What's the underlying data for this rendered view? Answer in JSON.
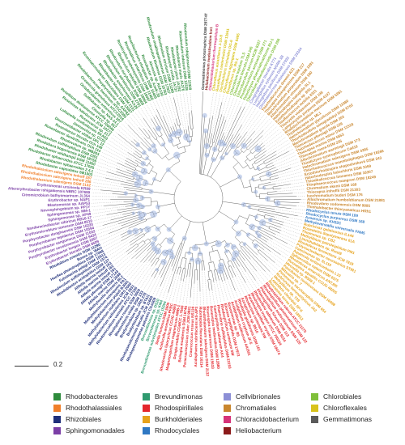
{
  "scale_bar": {
    "label": "0.2"
  },
  "legend": [
    {
      "label": "Rhodobacterales",
      "color": "#2e8b3c"
    },
    {
      "label": "Rhodothalassiales",
      "color": "#f07f2a"
    },
    {
      "label": "Rhizobiales",
      "color": "#1f2f7a"
    },
    {
      "label": "Sphingomonadales",
      "color": "#7b3fa6"
    },
    {
      "label": "Brevundimonas",
      "color": "#2f9a6f"
    },
    {
      "label": "Rhodospirillales",
      "color": "#e4262c"
    },
    {
      "label": "Burkholderiales",
      "color": "#e6a21c"
    },
    {
      "label": "Rhodocyclales",
      "color": "#2f78c3"
    },
    {
      "label": "Cellvibrionales",
      "color": "#8c8fd6"
    },
    {
      "label": "Chromatiales",
      "color": "#c9862e"
    },
    {
      "label": "Chloracidobacterium",
      "color": "#d6337a"
    },
    {
      "label": "Heliobacterium",
      "color": "#8b1a1a"
    },
    {
      "label": "Chlorobiales",
      "color": "#7fbf3a"
    },
    {
      "label": "Chloroflexales",
      "color": "#d8c21a"
    },
    {
      "label": "Gemmatimonas",
      "color": "#5a5a5a"
    }
  ],
  "tree": {
    "root_label": "Gemmatimonas phototrophica DSM 29774T",
    "clades": [
      {
        "order": "Chromatiales",
        "color": "#c9862e",
        "taxa": [
          "Thiorhodococcus drewsii AZ1",
          "Thiocapsa roseopersicina DSM 217",
          "Marichromatium purpuratum DSM 1591",
          "Allochromatium vinosum DSM 180",
          "Halorhodospira halophila SL1",
          "Ectothiorhodospira sp. BSL-9",
          "Thioflavicoccus mobilis 8321",
          "Thiocystis violascens DSM 198",
          "Lamprocystis purpurea DSM 4197",
          "Rhabdochromatium marinum DSM 5261",
          "Thiohalocapsa sp. ML1",
          "Halochromatium glycolicum DSM 11080",
          "Thiorhodovibrio winogradskyi DSM 6702",
          "Marichromatium gracile DSM 203",
          "Thiococcus pfennigii DSM 226",
          "Thiorhodococcus minor DSM 11518",
          "Thiocapsa marina DSM 5653",
          "Thiocapsa rosea DSM 235",
          "Allochromatium warmingii DSM 173",
          "Thiodictyon syntrophicum Cad16",
          "Halochromatium salexigens DSM 4395",
          "Thiorhodococcus mannitoliphagus DSM 18266",
          "Ectothiorhodospira shaposhnikovii DSM 243",
          "Halorhodospira halochloris DSM 1059",
          "Thioalkalicoccus limnaeus DSM 16307",
          "Thiophaeococcus mangrovi DSM 18249",
          "Chromatium okenii DSM 169",
          "Thiocapsa imhoffii DSM 21303",
          "Isochromatium buderi DSM 176",
          "Allochromatium humboldtianum DSM 21881",
          "Rhodovibrio sodomensis DSM 9895",
          "Thiohalobacter thiocyanaticus HRh1"
        ]
      },
      {
        "order": "Cellvibrionales",
        "color": "#8c8fd6",
        "taxa": [
          "Congregibacter litoralis KT71",
          "Luminiphilus syltensis NOR5-1B",
          "Halioglobus pacificus DSM 27932",
          "Chromatocurvus halotolerans DSM 23344"
        ]
      },
      {
        "order": "Rhodocyclales",
        "color": "#2f78c3",
        "taxa": [
          "Rhodocyclus tenuis DSM 109",
          "Rhodocyclus purpureus DSM 168",
          "Azoarcus sp. KH32C",
          "Methyloversatilis universalis FAM5"
        ]
      },
      {
        "order": "Burkholderiales",
        "color": "#e6a21c",
        "taxa": [
          "Rubrivivax gelatinosus IL144",
          "Roseateles depolymerans 61A",
          "Thiomonas sp. CB2",
          "Methylibium petroleiphilum PM1",
          "Limnohabitans sp. Rim28",
          "Rhodoferax fermentans JCM 7819",
          "Polynucleobacter necessarius STIR1",
          "Caenimonas sp. SL110",
          "Aquincola tertiaricarbonis L10",
          "Sphaerotilus natans DSM 6575",
          "Rhodoferax antarcticus ANT.BR",
          "Roseateles aquatilis CCUG 48205",
          "Ideonella sp. B508-1",
          "Paucibacter toxinivorans DSM 16998",
          "Mitsuaria sp. 7",
          "Pelomonas saccharophila DSM 654",
          "Rubrivivax benzoatilyticus JA2",
          "Methylibium sp. T29",
          "Leptothrix cholodnii SP-6",
          "Roseateles terrae DSM 18913"
        ]
      },
      {
        "order": "Rhodospirillales",
        "color": "#e4262c",
        "taxa": [
          "Rhodospirillum rubrum ATCC 11170",
          "Rhodospirillum photometricum DSM 122",
          "Phaeospirillum molischianum DSM 120",
          "Phaeospirillum fulvum DSM 113",
          "Rhodovibrio salinarum DSM 9154",
          "Rhodospira trueperi ATCC 700224",
          "Pararhodospirillum oryzae DSM 19474",
          "Rhodocista centenaria SW",
          "Azospirillum sp. B510",
          "Rhodopila globiformis DSM 161",
          "Acidiphilium cryptum JF-5",
          "Acidiphilium multivorum AIU301",
          "Roseomonas sp. B5",
          "Elioraea tepidiphila DSM 17972",
          "Rhodospirillum centenum SW",
          "Phaeovibrio sulfidiphilus DSM 23193",
          "Caenispirillum salinarum AK4",
          "Roseospira mediosalina DSM 12880",
          "Roseospira navarrensis DSM 15633",
          "Rhodothalassium salexigens DSM 2132",
          "Rubritepida flocculans DSM 16314",
          "Acidisphaera rubrifaciens HS-AP3",
          "Craurococcus roseus NS130",
          "Paracraurococcus ruber JCM 9931",
          "Belnapia moabensis DSM 16746",
          "Dongia mobilis CGMCC 1.7660",
          "Magnetospirillum magneticum AMB-1",
          "Rhodovarius lipocyclicus CCUG 44693",
          "Acidocella aromatica PFBC",
          "Stella humosa DSM 5900"
        ]
      },
      {
        "order": "Brevundimonas",
        "color": "#2f9a6f",
        "taxa": [
          "Brevundimonas subvibrioides ATCC 15264",
          "Brevundimonas sp. KM4",
          "Brevundimonas sp. DS20"
        ]
      },
      {
        "order": "Rhizobiales",
        "color": "#1f2f7a",
        "taxa": [
          "Rhodopseudomonas palustris CGA009",
          "Rhodopseudomonas faecalis JCM 11668",
          "Bradyrhizobium sp. BTAi1",
          "Bradyrhizobium sp. ORS 278",
          "Blastochloris viridis DSM 133",
          "Rhodoplanes roseus DSM 5909",
          "Rhodomicrobium vannielii ATCC 17100",
          "Methylobacterium radiotolerans JCM 2831",
          "Methylobacterium nodulans ORS 2060",
          "Methylobacterium populi BJ001",
          "Methylobacterium extorquens PA1",
          "Methylocella silvestris BL2",
          "Afifella marina DSM 2698",
          "Afifella pfennigii DSM 17143",
          "Afifella marina Imhoff 161",
          "Afifella marina Imhoff 162",
          "Afifella marina Imhoff 163",
          "Rhodoblastus acidophilus DSM 137",
          "Rhodovulum sulfidophilum DSM 1374",
          "Fulvimarina pelagi DSM 15513",
          "Hoeflea phototrophica DSM 17068",
          "Bosea sp. WAO",
          "Rhodobium orientis DSM 11290"
        ]
      },
      {
        "order": "Sphingomonadales",
        "color": "#7b3fa6",
        "taxa": [
          "Erythrobacter litoralis DSM 8509",
          "Erythrobacter longus DSM 6997",
          "Porphyrobacter neustonensis DSM 9434",
          "Porphyrobacter sanguineus DSM 11032",
          "Porphyrobacter tepidarius DSM 10594",
          "Porphyrobacter donghaensis DSM 16220",
          "Erythromicrobium ramosum DSM 8510",
          "Sandaracinobacter sibiricus RB16-17",
          "Sphingomonas sp. AP49",
          "Sphingomonas sp. MM-1",
          "Novosphingobium sp. PP1Y",
          "Blastomonas sp. AAP53",
          "Erythrobacter sp. NAP1",
          "Citromicrobium bathyomarinum JL354",
          "Altererythrobacter ishigakiensis NBRC 107699",
          "Erythromonas ursincola KR99"
        ]
      },
      {
        "order": "Rhodothalassiales",
        "color": "#f07f2a",
        "taxa": [
          "Rhodothalassium salexigens DSM 2132",
          "Rhodothalassium salexigens Imhoff 286",
          "Rhodothalassium salexigens Imhoff 287"
        ]
      },
      {
        "order": "Rhodobacterales",
        "color": "#2e8b3c",
        "taxa": [
          "Rhodobacter capsulatus SB1003",
          "Rhodobacter sphaeroides 2.4.1",
          "Rhodobacter sphaeroides ATCC 17025",
          "Rhodobacter veldkampii DSM 11550",
          "Rhodobaca bogoriensis DSM 18756",
          "Rhodovulum sulfidophilum DSM 2351",
          "Rhodovulum sp. MB263",
          "Roseobacter denitrificans OCh 114",
          "Roseobacter litoralis Och 149",
          "Dinoroseobacter shibae DFL 12",
          "Jannaschia sp. CCS1",
          "Loktanella vestfoldensis SKA53",
          "Roseovarius sp. 217",
          "Roseivivax halodurans JCM 10272",
          "Roseibium denhamense ATCC 700046",
          "Citreicella sp. 357",
          "Sulfitobacter sp. NAS-14.1",
          "Octadecabacter antarcticus 307",
          "Oceanicola granulosus HTCC2516",
          "Rhodobacteraceae bacterium HTCC2083",
          "Porphyrobacter sp. AAP82",
          "Roseinatronobacter thiooxidans DSM 13087",
          "Rhodobacter blasticus DSM 2131",
          "Rhodobacter azotoformans KA25",
          "Rhodovulum adriaticum DSM 2781",
          "Rhodovulum euryhalinum DSM 4868",
          "Rhodovulum imhoffii DSM 18064",
          "Roseicyclus mahoneyensis DSM 16097",
          "Roseisalinus antarcticus DSM 11466",
          "Roseibacterium elongatum DSM 19469",
          "Roseobacter sp. AzwK-3b",
          "Ahrensia sp. R2A130",
          "Rhodovulum kholense DSM 19783",
          "Rhodovulum visakhapatnamense DSM 17937",
          "Rhodovulum strictum DSM 11289",
          "Rhodobacter viridis JA737",
          "Rhodobacter johrii JA192",
          "Rhodobacter maris JA276",
          "Rhodovulum iodosum DSM 12328",
          "Rhodovulum robiginosum DSM 12329"
        ]
      },
      {
        "order": "Chlorobiales",
        "color": "#7fbf3a",
        "taxa": [
          "Chlorobium tepidum TLS",
          "Chlorobium limicola DSM 245",
          "Chlorobaculum parvum NCIB 8327",
          "Prosthecochloris aestuarii DSM 271",
          "Pelodictyon phaeoclathratiforme BU-1",
          "Chlorobium phaeobacteroides DSM 266"
        ]
      },
      {
        "order": "Chloroflexales",
        "color": "#d8c21a",
        "taxa": [
          "Chloroflexus aurantiacus J-10-fl",
          "Roseiflexus castenholzii DSM 13941",
          "Oscillochloris trichoides DG-6",
          "Chloroflexus aggregans DSM 9485",
          "Roseiflexus sp. RS-1"
        ]
      },
      {
        "order": "Chloracidobacterium",
        "color": "#d6337a",
        "taxa": [
          "Chloracidobacterium thermophilum B"
        ]
      },
      {
        "order": "Heliobacterium",
        "color": "#8b1a1a",
        "taxa": [
          "Heliobacterium modesticaldum Ice1"
        ]
      }
    ]
  }
}
